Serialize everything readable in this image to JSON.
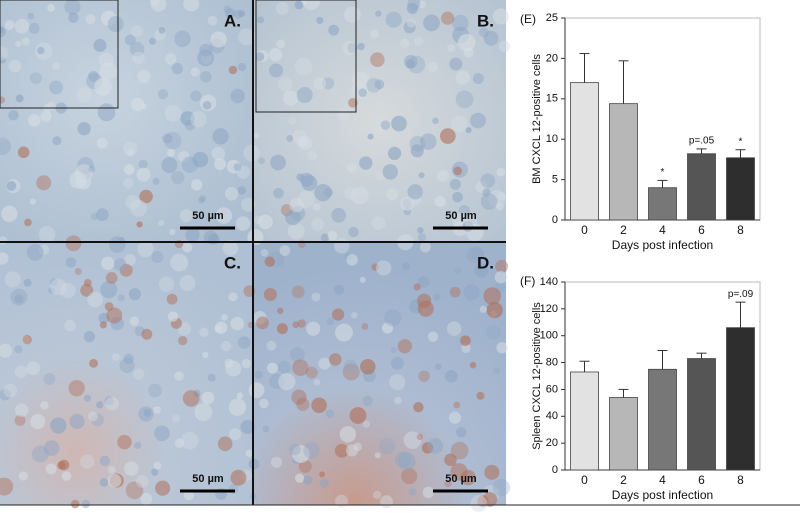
{
  "panels": [
    {
      "label": "A.",
      "scale_bar": "50 µm"
    },
    {
      "label": "B.",
      "scale_bar": "50 µm"
    },
    {
      "label": "C.",
      "scale_bar": "50 µm"
    },
    {
      "label": "D.",
      "scale_bar": "50 µm"
    }
  ],
  "chart_data": [
    {
      "type": "bar",
      "panel_label": "(E)",
      "y_label": "BM CXCL 12-positive cells",
      "x_label": "Days post infection",
      "categories": [
        "0",
        "2",
        "4",
        "6",
        "8"
      ],
      "values": [
        17,
        14.4,
        4,
        8.2,
        7.7
      ],
      "errors": [
        3.6,
        5.3,
        0.9,
        0.6,
        1.0
      ],
      "annotations": [
        null,
        null,
        "*",
        "p=.05",
        "*"
      ],
      "colors": [
        "#e2e2e2",
        "#b7b7b7",
        "#777777",
        "#555555",
        "#2e2e2e"
      ],
      "ylim": [
        0,
        25
      ],
      "yticks": [
        0,
        5,
        10,
        15,
        20,
        25
      ]
    },
    {
      "type": "bar",
      "panel_label": "(F)",
      "y_label": "Spleen CXCL 12-positive cells",
      "x_label": "Days post infection",
      "categories": [
        "0",
        "2",
        "4",
        "6",
        "8"
      ],
      "values": [
        73,
        54,
        75,
        83,
        106
      ],
      "errors": [
        8,
        6,
        14,
        4,
        19
      ],
      "annotations": [
        null,
        null,
        null,
        null,
        "p=.09"
      ],
      "colors": [
        "#e2e2e2",
        "#b7b7b7",
        "#777777",
        "#555555",
        "#2e2e2e"
      ],
      "ylim": [
        0,
        140
      ],
      "yticks": [
        0,
        20,
        40,
        60,
        80,
        100,
        120,
        140
      ]
    }
  ]
}
